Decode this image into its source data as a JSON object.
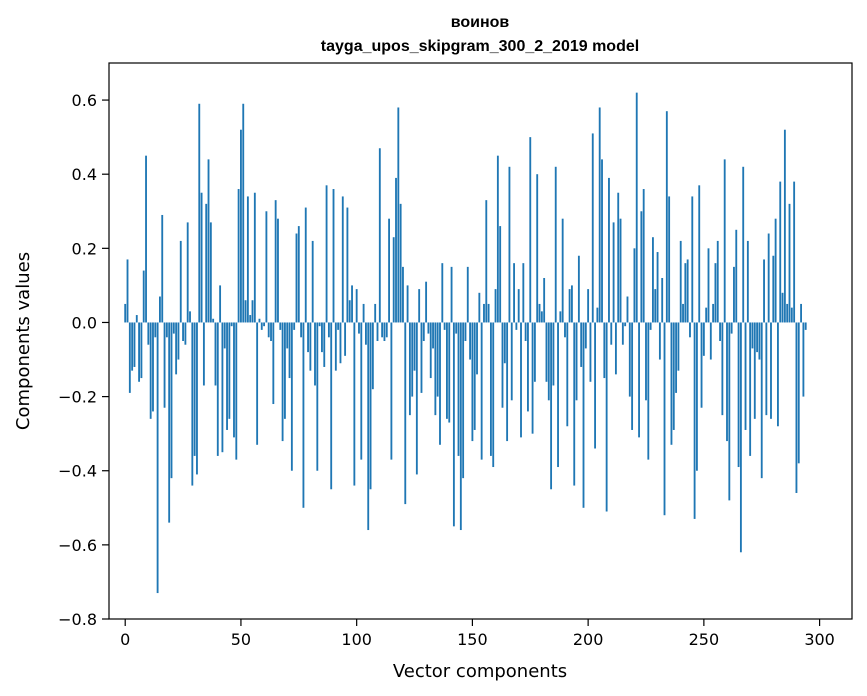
{
  "chart_data": {
    "type": "bar",
    "title": "воинов",
    "subtitle": "tayga_upos_skipgram_300_2_2019 model",
    "xlabel": "Vector components",
    "ylabel": "Components values",
    "xlim": [
      -7,
      314
    ],
    "ylim": [
      -0.8,
      0.7
    ],
    "xticks": [
      0,
      50,
      100,
      150,
      200,
      250,
      300
    ],
    "yticks": [
      -0.8,
      -0.6,
      -0.4,
      -0.2,
      0.0,
      0.2,
      0.4,
      0.6
    ],
    "ytick_labels": [
      "−0.8",
      "−0.6",
      "−0.4",
      "−0.2",
      "0.0",
      "0.2",
      "0.4",
      "0.6"
    ],
    "bar_color": "#1f77b4",
    "values": [
      0.05,
      0.17,
      -0.19,
      -0.13,
      -0.12,
      0.02,
      -0.16,
      -0.15,
      0.14,
      0.45,
      -0.06,
      -0.26,
      -0.24,
      -0.04,
      -0.73,
      0.07,
      0.29,
      -0.23,
      -0.04,
      -0.54,
      -0.42,
      -0.03,
      -0.14,
      -0.1,
      0.22,
      -0.05,
      -0.06,
      0.27,
      0.03,
      -0.44,
      -0.36,
      -0.41,
      0.59,
      0.35,
      -0.17,
      0.32,
      0.44,
      0.27,
      0.01,
      -0.17,
      -0.36,
      0.1,
      -0.35,
      -0.07,
      -0.29,
      -0.26,
      -0.01,
      -0.31,
      -0.37,
      0.36,
      0.52,
      0.59,
      0.06,
      0.34,
      0.02,
      0.06,
      0.35,
      -0.33,
      0.01,
      -0.02,
      -0.01,
      0.3,
      -0.04,
      -0.05,
      -0.22,
      0.33,
      0.28,
      -0.02,
      -0.32,
      -0.26,
      -0.07,
      -0.15,
      -0.4,
      -0.02,
      0.24,
      0.26,
      -0.04,
      -0.5,
      0.31,
      -0.08,
      -0.13,
      0.22,
      -0.17,
      -0.4,
      -0.01,
      -0.08,
      -0.12,
      0.37,
      -0.04,
      -0.45,
      0.36,
      -0.13,
      -0.02,
      -0.11,
      0.34,
      -0.09,
      0.31,
      0.06,
      0.1,
      -0.44,
      0.09,
      -0.03,
      -0.37,
      0.05,
      -0.06,
      -0.56,
      -0.45,
      -0.18,
      0.05,
      -0.05,
      0.47,
      -0.04,
      -0.05,
      -0.04,
      0.28,
      -0.37,
      0.23,
      0.39,
      0.58,
      0.32,
      0.15,
      -0.49,
      0.1,
      -0.25,
      -0.2,
      -0.13,
      -0.41,
      0.09,
      -0.19,
      -0.05,
      0.11,
      -0.03,
      -0.15,
      -0.07,
      -0.25,
      -0.2,
      -0.33,
      0.16,
      -0.02,
      -0.26,
      -0.27,
      0.15,
      -0.55,
      -0.03,
      -0.36,
      -0.56,
      -0.42,
      -0.05,
      0.15,
      -0.1,
      -0.32,
      -0.29,
      -0.14,
      0.08,
      -0.37,
      0.05,
      0.33,
      0.05,
      -0.36,
      -0.39,
      0.09,
      0.45,
      0.26,
      -0.23,
      -0.11,
      -0.32,
      0.42,
      -0.21,
      0.16,
      -0.02,
      0.09,
      -0.31,
      0.16,
      -0.05,
      -0.24,
      0.5,
      -0.3,
      -0.16,
      0.4,
      0.05,
      0.03,
      0.12,
      -0.16,
      -0.21,
      -0.45,
      -0.17,
      0.42,
      -0.39,
      0.03,
      0.28,
      -0.04,
      -0.28,
      0.09,
      0.1,
      -0.44,
      -0.21,
      0.18,
      -0.12,
      -0.5,
      -0.07,
      0.09,
      -0.16,
      0.51,
      -0.34,
      0.04,
      0.58,
      0.44,
      -0.15,
      -0.51,
      0.39,
      -0.06,
      0.27,
      -0.14,
      0.35,
      0.28,
      -0.06,
      -0.01,
      0.07,
      -0.2,
      -0.29,
      0.2,
      0.62,
      -0.31,
      0.3,
      0.36,
      -0.21,
      -0.37,
      -0.02,
      0.23,
      0.09,
      0.19,
      -0.1,
      0.12,
      -0.52,
      0.57,
      0.34,
      -0.33,
      -0.29,
      -0.19,
      -0.13,
      0.22,
      0.05,
      0.16,
      0.17,
      -0.04,
      0.34,
      -0.53,
      -0.4,
      0.37,
      -0.23,
      -0.09,
      0.04,
      0.2,
      -0.1,
      0.05,
      0.16,
      0.22,
      -0.05,
      -0.25,
      0.44,
      -0.32,
      -0.48,
      -0.03,
      0.15,
      0.25,
      -0.39,
      -0.62,
      0.42,
      -0.29,
      0.22,
      -0.36,
      -0.07,
      -0.26,
      -0.08,
      -0.1,
      -0.42,
      0.17,
      -0.25,
      0.24,
      -0.26,
      0.18,
      0.28,
      -0.28,
      0.38,
      0.08,
      0.52,
      0.05,
      0.32,
      0.04,
      0.38,
      -0.46,
      -0.38,
      0.05,
      -0.2,
      -0.02
    ]
  }
}
